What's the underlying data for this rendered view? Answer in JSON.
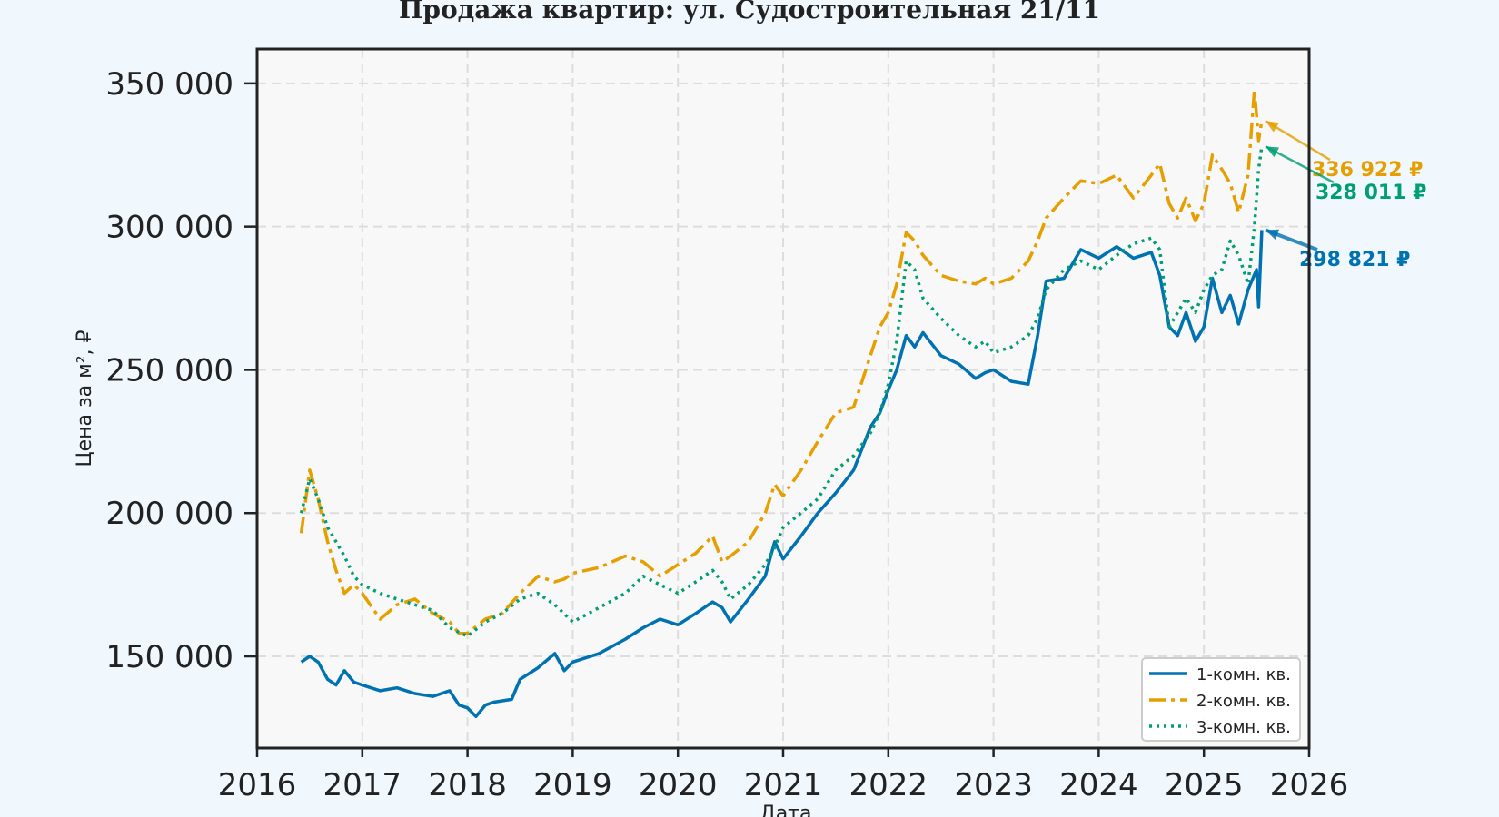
{
  "chart_data": {
    "type": "line",
    "title": "Продажа квартир: ул. Судостроительная 21/11",
    "xlabel": "Дата",
    "ylabel": "Цена за м², ₽",
    "xlim": [
      2016.0,
      2026.0
    ],
    "ylim": [
      118000,
      362000
    ],
    "x_ticks": [
      2016,
      2017,
      2018,
      2019,
      2020,
      2021,
      2022,
      2023,
      2024,
      2025,
      2026
    ],
    "x_tick_labels": [
      "2016",
      "2017",
      "2018",
      "2019",
      "2020",
      "2021",
      "2022",
      "2023",
      "2024",
      "2025",
      "2026"
    ],
    "y_ticks": [
      150000,
      200000,
      250000,
      300000,
      350000
    ],
    "y_tick_labels": [
      "150 000",
      "200 000",
      "250 000",
      "300 000",
      "350 000"
    ],
    "grid": true,
    "legend_position": "bottom-right",
    "series": [
      {
        "name": "1-комн. кв.",
        "color": "#0072b2",
        "style": "solid",
        "x": [
          2016.42,
          2016.5,
          2016.58,
          2016.67,
          2016.75,
          2016.83,
          2016.92,
          2017.0,
          2017.17,
          2017.33,
          2017.5,
          2017.67,
          2017.83,
          2017.92,
          2018.0,
          2018.08,
          2018.17,
          2018.25,
          2018.42,
          2018.5,
          2018.67,
          2018.83,
          2018.92,
          2019.0,
          2019.25,
          2019.5,
          2019.67,
          2019.83,
          2020.0,
          2020.17,
          2020.33,
          2020.42,
          2020.5,
          2020.67,
          2020.83,
          2020.92,
          2021.0,
          2021.17,
          2021.33,
          2021.5,
          2021.67,
          2021.83,
          2021.92,
          2022.0,
          2022.08,
          2022.17,
          2022.25,
          2022.33,
          2022.5,
          2022.67,
          2022.83,
          2022.92,
          2023.0,
          2023.17,
          2023.33,
          2023.42,
          2023.5,
          2023.67,
          2023.83,
          2024.0,
          2024.17,
          2024.33,
          2024.5,
          2024.58,
          2024.67,
          2024.75,
          2024.83,
          2024.92,
          2025.0,
          2025.08,
          2025.17,
          2025.25,
          2025.33,
          2025.42,
          2025.5,
          2025.52,
          2025.55
        ],
        "values": [
          148000,
          150000,
          148000,
          142000,
          140000,
          145000,
          141000,
          140000,
          138000,
          139000,
          137000,
          136000,
          138000,
          133000,
          132000,
          129000,
          133000,
          134000,
          135000,
          142000,
          146000,
          151000,
          145000,
          148000,
          151000,
          156000,
          160000,
          163000,
          161000,
          165000,
          169000,
          167000,
          162000,
          170000,
          178000,
          190000,
          184000,
          192000,
          200000,
          207000,
          215000,
          230000,
          235000,
          243000,
          250000,
          262000,
          258000,
          263000,
          255000,
          252000,
          247000,
          249000,
          250000,
          246000,
          245000,
          262000,
          281000,
          282000,
          292000,
          289000,
          293000,
          289000,
          291000,
          283000,
          265000,
          262000,
          270000,
          260000,
          265000,
          282000,
          270000,
          276000,
          266000,
          278000,
          285000,
          272000,
          298821
        ]
      },
      {
        "name": "2-комн. кв.",
        "color": "#e69f00",
        "style": "dashdot",
        "x": [
          2016.42,
          2016.5,
          2016.58,
          2016.67,
          2016.75,
          2016.83,
          2016.92,
          2017.0,
          2017.17,
          2017.33,
          2017.5,
          2017.67,
          2017.83,
          2017.92,
          2018.0,
          2018.17,
          2018.33,
          2018.5,
          2018.67,
          2018.83,
          2018.92,
          2019.0,
          2019.25,
          2019.5,
          2019.67,
          2019.83,
          2020.0,
          2020.17,
          2020.33,
          2020.42,
          2020.5,
          2020.67,
          2020.83,
          2020.92,
          2021.0,
          2021.17,
          2021.33,
          2021.5,
          2021.67,
          2021.83,
          2021.92,
          2022.0,
          2022.08,
          2022.17,
          2022.25,
          2022.33,
          2022.5,
          2022.67,
          2022.83,
          2022.92,
          2023.0,
          2023.17,
          2023.33,
          2023.42,
          2023.5,
          2023.67,
          2023.83,
          2024.0,
          2024.17,
          2024.33,
          2024.5,
          2024.58,
          2024.67,
          2024.75,
          2024.83,
          2024.92,
          2025.0,
          2025.08,
          2025.17,
          2025.25,
          2025.33,
          2025.42,
          2025.48,
          2025.52,
          2025.55
        ],
        "values": [
          193000,
          215000,
          205000,
          190000,
          180000,
          172000,
          175000,
          172000,
          163000,
          168000,
          170000,
          165000,
          162000,
          158000,
          158000,
          163000,
          165000,
          172000,
          178000,
          176000,
          177000,
          179000,
          181000,
          185000,
          183000,
          178000,
          182000,
          186000,
          192000,
          183000,
          185000,
          190000,
          200000,
          210000,
          206000,
          215000,
          225000,
          235000,
          237000,
          255000,
          265000,
          270000,
          280000,
          298000,
          295000,
          290000,
          283000,
          281000,
          280000,
          282000,
          280000,
          282000,
          288000,
          295000,
          303000,
          310000,
          316000,
          315000,
          318000,
          310000,
          318000,
          322000,
          308000,
          303000,
          310000,
          302000,
          308000,
          325000,
          320000,
          315000,
          305000,
          318000,
          348000,
          330000,
          336922
        ]
      },
      {
        "name": "3-комн. кв.",
        "color": "#009e73",
        "style": "dotted",
        "x": [
          2016.42,
          2016.5,
          2016.58,
          2016.67,
          2016.75,
          2016.83,
          2016.92,
          2017.0,
          2017.17,
          2017.33,
          2017.5,
          2017.67,
          2017.83,
          2018.0,
          2018.17,
          2018.33,
          2018.5,
          2018.67,
          2018.83,
          2019.0,
          2019.25,
          2019.5,
          2019.67,
          2019.83,
          2020.0,
          2020.17,
          2020.33,
          2020.42,
          2020.5,
          2020.67,
          2020.83,
          2020.92,
          2021.0,
          2021.17,
          2021.33,
          2021.5,
          2021.67,
          2021.83,
          2021.92,
          2022.0,
          2022.08,
          2022.17,
          2022.25,
          2022.33,
          2022.5,
          2022.67,
          2022.83,
          2022.92,
          2023.0,
          2023.17,
          2023.33,
          2023.42,
          2023.5,
          2023.67,
          2023.83,
          2024.0,
          2024.17,
          2024.33,
          2024.5,
          2024.58,
          2024.67,
          2024.75,
          2024.83,
          2024.92,
          2025.0,
          2025.08,
          2025.17,
          2025.25,
          2025.33,
          2025.42,
          2025.48,
          2025.52,
          2025.55
        ],
        "values": [
          200000,
          212000,
          205000,
          195000,
          190000,
          185000,
          178000,
          175000,
          172000,
          170000,
          168000,
          166000,
          160000,
          157000,
          162000,
          165000,
          170000,
          172000,
          168000,
          162000,
          167000,
          172000,
          178000,
          175000,
          172000,
          176000,
          180000,
          176000,
          170000,
          175000,
          182000,
          188000,
          195000,
          200000,
          205000,
          215000,
          220000,
          228000,
          235000,
          245000,
          260000,
          288000,
          285000,
          275000,
          268000,
          262000,
          258000,
          260000,
          256000,
          258000,
          262000,
          268000,
          278000,
          285000,
          288000,
          285000,
          290000,
          294000,
          296000,
          292000,
          265000,
          270000,
          275000,
          270000,
          278000,
          283000,
          285000,
          295000,
          290000,
          280000,
          300000,
          320000,
          328011
        ]
      }
    ],
    "annotations": [
      {
        "text": "336 922 ₽",
        "color": "#e69f00",
        "x": 2025.55,
        "y": 336922
      },
      {
        "text": "328 011 ₽",
        "color": "#009e73",
        "x": 2025.55,
        "y": 328011
      },
      {
        "text": "298 821 ₽",
        "color": "#0072b2",
        "x": 2025.55,
        "y": 298821
      }
    ]
  }
}
